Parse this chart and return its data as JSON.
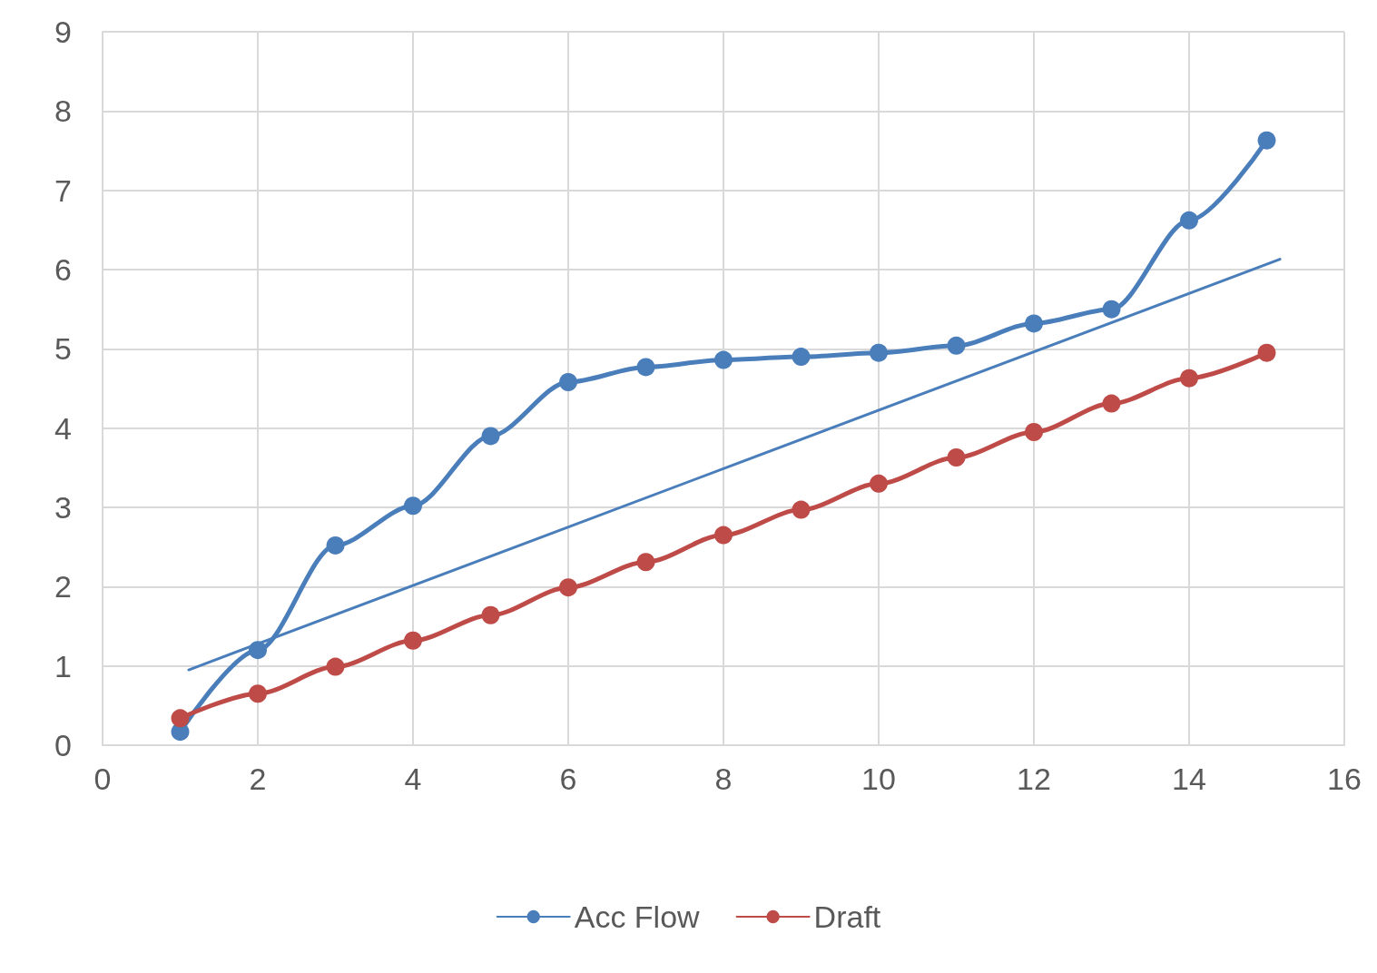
{
  "chart_data": {
    "type": "line",
    "series": [
      {
        "name": "Acc Flow",
        "color": "#4a7ebb",
        "x": [
          1,
          2,
          3,
          4,
          5,
          6,
          7,
          8,
          9,
          10,
          11,
          12,
          13,
          14,
          15
        ],
        "values": [
          0.17,
          1.2,
          2.52,
          3.02,
          3.9,
          4.58,
          4.77,
          4.86,
          4.9,
          4.95,
          5.04,
          5.32,
          5.5,
          6.62,
          7.63
        ]
      },
      {
        "name": "Draft",
        "color": "#be4b48",
        "x": [
          1,
          2,
          3,
          4,
          5,
          6,
          7,
          8,
          9,
          10,
          11,
          12,
          13,
          14,
          15
        ],
        "values": [
          0.34,
          0.65,
          0.99,
          1.32,
          1.64,
          1.99,
          2.31,
          2.65,
          2.97,
          3.3,
          3.63,
          3.95,
          4.31,
          4.63,
          4.95
        ]
      },
      {
        "color": "#4a7ebb",
        "marker": "none",
        "x": [
          1.11,
          15.17
        ],
        "values": [
          0.95,
          6.13
        ]
      }
    ],
    "xlim": [
      0,
      16
    ],
    "xticks": [
      0,
      2,
      4,
      6,
      8,
      10,
      12,
      14,
      16
    ],
    "ylim": [
      0,
      9
    ],
    "yticks": [
      0,
      1,
      2,
      3,
      4,
      5,
      6,
      7,
      8,
      9
    ],
    "grid": true,
    "legend": "bottom",
    "marker": "circle",
    "line_style": "solid"
  }
}
